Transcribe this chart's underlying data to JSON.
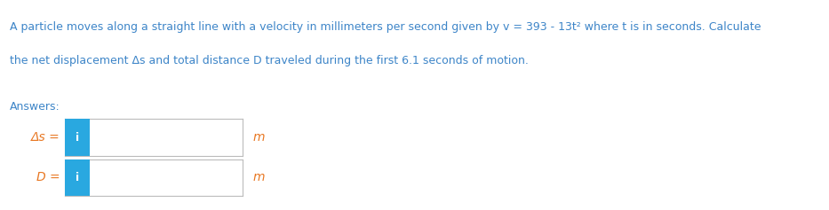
{
  "title_line1": "A particle moves along a straight line with a velocity in millimeters per second given by v = 393 - 13t² where t is in seconds. Calculate",
  "title_line2": "the net displacement Δs and total distance D traveled during the first 6.1 seconds of motion.",
  "answers_label": "Answers:",
  "row1_label": "Δs =",
  "row2_label": "D =",
  "unit": "m",
  "blue_color": "#29A8E0",
  "box_border_color": "#BBBBBB",
  "title_text_color": "#3D85C8",
  "answer_label_color": "#3D85C8",
  "label_color": "#E87722",
  "unit_color": "#E87722",
  "bg_color": "#ffffff",
  "i_label": "i",
  "title_fontsize": 9.0,
  "answers_fontsize": 9.0,
  "label_fontsize": 10.0
}
